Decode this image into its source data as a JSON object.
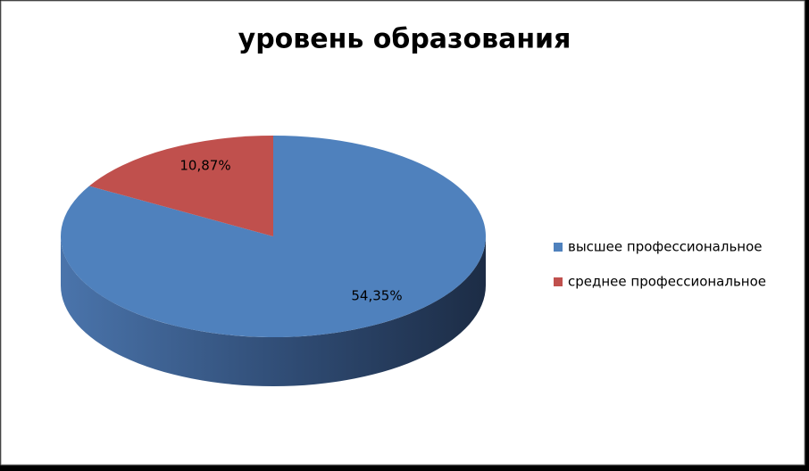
{
  "chart_data": {
    "type": "pie",
    "title": "уровень образования",
    "categories": [
      "высшее профессиональное",
      "среднее профессиональное"
    ],
    "values": [
      54.35,
      10.87
    ],
    "value_labels": [
      "54,35%",
      "10,87%"
    ],
    "colors": [
      "#4f81bd",
      "#c0504d"
    ],
    "legend": "right"
  }
}
